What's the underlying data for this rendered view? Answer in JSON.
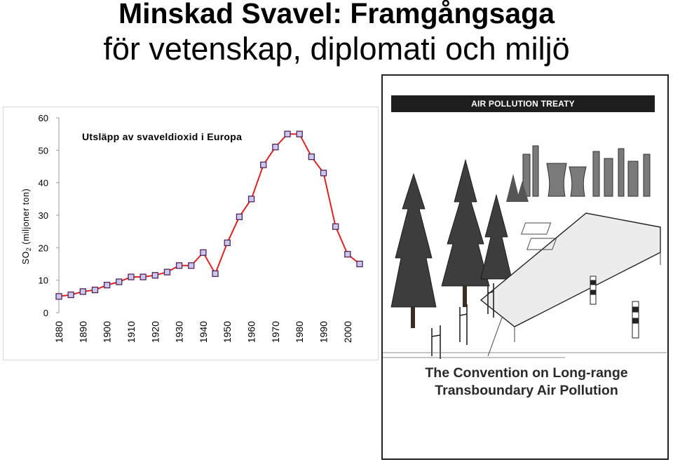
{
  "slide": {
    "title_line1": "Minskad Svavel: Framgångsaga",
    "title_line2": "för vetenskap, diplomati och miljö"
  },
  "chart_data": {
    "type": "line",
    "title": "Utsläpp av svaveldioxid i Europa",
    "ylabel_main": "SO",
    "ylabel_sub": "2",
    "ylabel_rest": " (miljoner ton)",
    "xlabel": "",
    "ylim": [
      0,
      60
    ],
    "xlim": [
      1880,
      2005
    ],
    "yticks": [
      "0",
      "10",
      "20",
      "30",
      "40",
      "50",
      "60"
    ],
    "xticks": [
      "1880",
      "1890",
      "1900",
      "1910",
      "1920",
      "1930",
      "1940",
      "1950",
      "1960",
      "1970",
      "1980",
      "1990",
      "2000"
    ],
    "series": [
      {
        "x": [
          1880,
          1885,
          1890,
          1895,
          1900,
          1905,
          1910,
          1915,
          1920,
          1925,
          1930,
          1935,
          1940,
          1945,
          1950,
          1955,
          1960,
          1965,
          1970,
          1975,
          1980,
          1985,
          1990,
          1995,
          2000,
          2005
        ],
        "values": [
          5,
          5.5,
          6.5,
          7,
          8.5,
          9.5,
          11,
          11,
          11.5,
          12.5,
          14.5,
          14.5,
          18.5,
          12,
          21.5,
          29.5,
          35,
          45.5,
          51,
          55,
          55,
          48,
          43,
          26.5,
          18,
          15
        ]
      }
    ],
    "grid": false,
    "line_color": "#dd2222",
    "marker_face": "#c8c8f0",
    "marker_edge": "#552255"
  },
  "cartoon": {
    "banner": "AIR POLLUTION TREATY",
    "caption_line1": "The Convention on Long-range",
    "caption_line2": "Transboundary Air Pollution"
  }
}
